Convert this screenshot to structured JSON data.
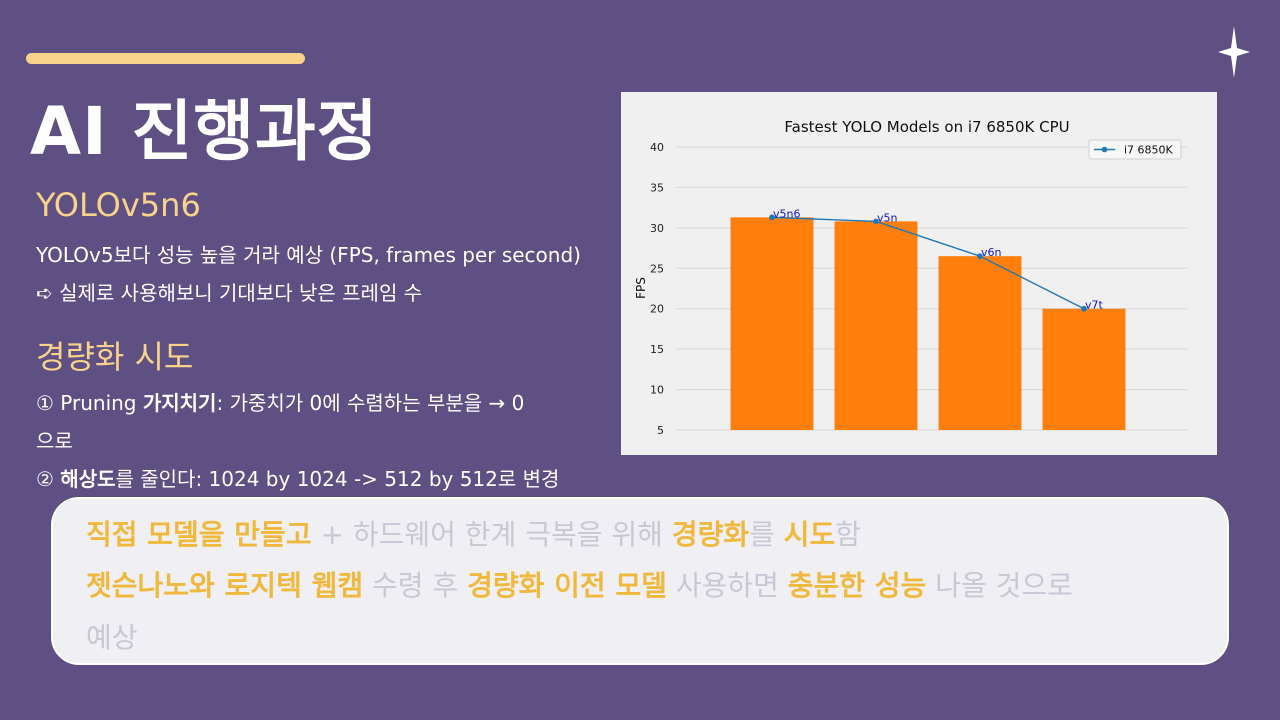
{
  "slide": {
    "title": "AI 진행과정",
    "colors": {
      "background": "#5e5083",
      "accent": "#f9d38b",
      "highlight": "#f0b93d",
      "bar": "#ff7f0e",
      "line": "#1f77b4"
    },
    "section1": {
      "heading": "YOLOv5n6",
      "line1": "YOLOv5보다 성능 높을 거라 예상 (FPS, frames per second)",
      "line2": "➪ 실제로 사용해보니 기대보다 낮은 프레임 수"
    },
    "section2": {
      "heading": "경량화 시도",
      "item1_prefix": "① Pruning ",
      "item1_bold": "가지치기",
      "item1_rest": ": 가중치가 0에 수렴하는 부분을 → 0",
      "item1_wrap": "으로",
      "item2_prefix": "② ",
      "item2_bold": "해상도",
      "item2_rest": "를 줄인다: 1024 by 1024 -> 512 by 512로 변경"
    },
    "callout": {
      "line1": [
        {
          "text": "직접 모델을 만들고",
          "hl": true
        },
        {
          "text": " + 하드웨어 한계 극복을 위해 ",
          "hl": false
        },
        {
          "text": "경량화",
          "hl": true
        },
        {
          "text": "를 ",
          "hl": false
        },
        {
          "text": "시도",
          "hl": true
        },
        {
          "text": "함",
          "hl": false
        }
      ],
      "line2": [
        {
          "text": "젯슨나노와 로지텍 웹캠",
          "hl": true
        },
        {
          "text": " 수령 후 ",
          "hl": false
        },
        {
          "text": "경량화 이전 모델",
          "hl": true
        },
        {
          "text": " 사용하면 ",
          "hl": false
        },
        {
          "text": "충분한 성능",
          "hl": true
        },
        {
          "text": " 나올 것으로",
          "hl": false
        }
      ],
      "line3": [
        {
          "text": "예상",
          "hl": false
        }
      ]
    }
  },
  "chart_data": {
    "type": "bar",
    "title": "Fastest YOLO Models on i7 6850K CPU",
    "ylabel": "FPS",
    "xlabel": "",
    "ylim": [
      5,
      40
    ],
    "yticks": [
      5,
      10,
      15,
      20,
      25,
      30,
      35,
      40
    ],
    "categories": [
      "v5n6",
      "v5n",
      "v6n",
      "v7t"
    ],
    "values": [
      31.3,
      30.8,
      26.5,
      20.0
    ],
    "line_series": {
      "name": "i7 6850K",
      "values": [
        31.3,
        30.8,
        26.5,
        20.0
      ]
    },
    "point_labels": [
      "v5n6",
      "v5n",
      "v6n",
      "v7t"
    ],
    "legend_position": "top-right",
    "grid": "horizontal"
  }
}
